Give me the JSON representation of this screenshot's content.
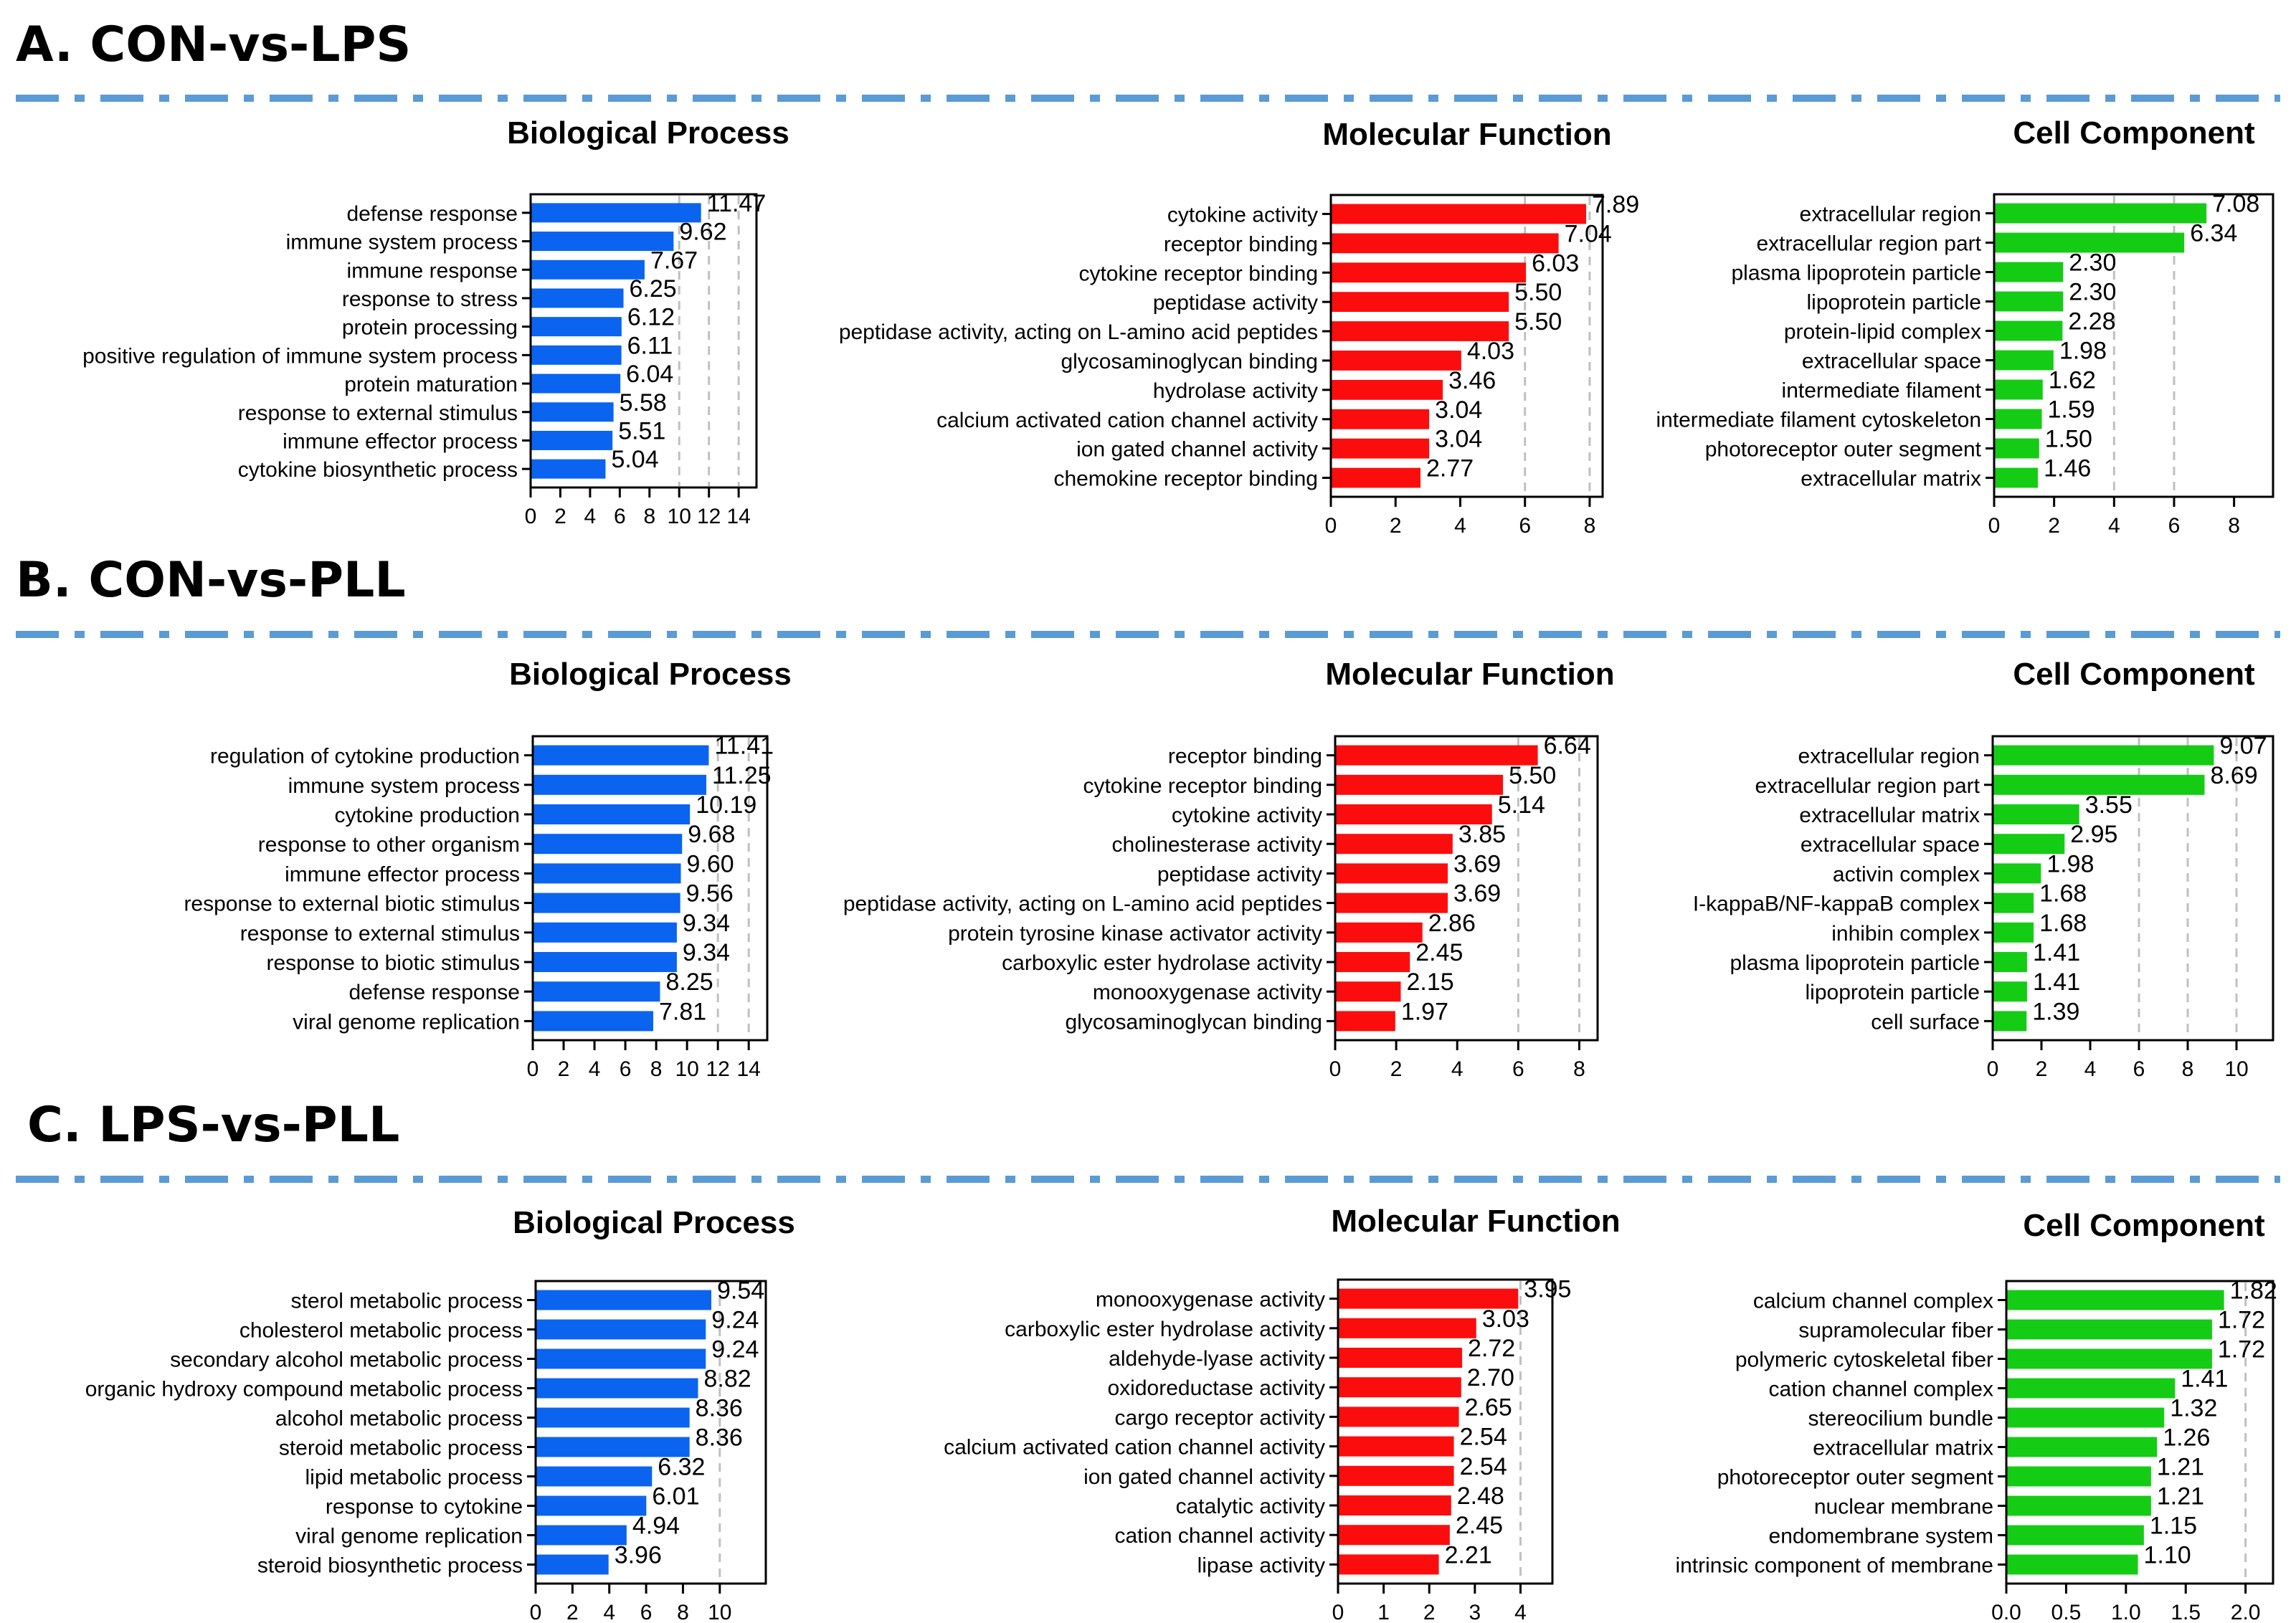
{
  "colors": {
    "divider": "#5b9bd5",
    "bp": "#0a64f0",
    "mf": "#fc0d0d",
    "cc": "#14cc14",
    "grid": "#c0c0c0"
  },
  "sections": [
    {
      "title": "A. CON-vs-LPS"
    },
    {
      "title": "B. CON-vs-PLL"
    },
    {
      "title": "C. LPS-vs-PLL"
    }
  ],
  "chart_data": [
    {
      "type": "bar",
      "orientation": "horizontal",
      "section": "A. CON-vs-LPS",
      "title": "Biological Process",
      "color_key": "bp",
      "categories": [
        "defense response",
        "immune system process",
        "immune response",
        "response to stress",
        "protein processing",
        "positive regulation of immune system process",
        "protein maturation",
        "response to external stimulus",
        "immune effector process",
        "cytokine biosynthetic process"
      ],
      "values": [
        11.47,
        9.62,
        7.67,
        6.25,
        6.12,
        6.11,
        6.04,
        5.58,
        5.51,
        5.04
      ],
      "value_labels": [
        "11.47",
        "9.62",
        "7.67",
        "6.25",
        "6.12",
        "6.11",
        "6.04",
        "5.58",
        "5.51",
        "5.04"
      ],
      "xlim": [
        0,
        15.2
      ],
      "ticks": [
        0,
        2,
        4,
        6,
        8,
        10,
        12,
        14
      ],
      "tick_labels": [
        "0",
        "2",
        "4",
        "6",
        "8",
        "10",
        "12",
        "14"
      ],
      "grid": [
        10,
        12,
        14
      ]
    },
    {
      "type": "bar",
      "orientation": "horizontal",
      "section": "A. CON-vs-LPS",
      "title": "Molecular Function",
      "color_key": "mf",
      "categories": [
        "cytokine activity",
        "receptor binding",
        "cytokine receptor binding",
        "peptidase activity",
        "peptidase activity, acting on L-amino acid peptides",
        "glycosaminoglycan binding",
        "hydrolase activity",
        "calcium activated cation channel activity",
        "ion gated channel activity",
        "chemokine receptor binding"
      ],
      "values": [
        7.89,
        7.04,
        6.03,
        5.5,
        5.5,
        4.03,
        3.46,
        3.04,
        3.04,
        2.77
      ],
      "value_labels": [
        "7.89",
        "7.04",
        "6.03",
        "5.50",
        "5.50",
        "4.03",
        "3.46",
        "3.04",
        "3.04",
        "2.77"
      ],
      "xlim": [
        0,
        8.4
      ],
      "ticks": [
        0,
        2,
        4,
        6,
        8
      ],
      "tick_labels": [
        "0",
        "2",
        "4",
        "6",
        "8"
      ],
      "grid": [
        6,
        8
      ]
    },
    {
      "type": "bar",
      "orientation": "horizontal",
      "section": "A. CON-vs-LPS",
      "title": "Cell Component",
      "color_key": "cc",
      "categories": [
        "extracellular region",
        "extracellular region part",
        "plasma lipoprotein particle",
        "lipoprotein particle",
        "protein-lipid complex",
        "extracellular space",
        "intermediate filament",
        "intermediate filament cytoskeleton",
        "photoreceptor outer segment",
        "extracellular matrix"
      ],
      "values": [
        7.08,
        6.34,
        2.3,
        2.3,
        2.28,
        1.98,
        1.62,
        1.59,
        1.5,
        1.46
      ],
      "value_labels": [
        "7.08",
        "6.34",
        "2.30",
        "2.30",
        "2.28",
        "1.98",
        "1.62",
        "1.59",
        "1.50",
        "1.46"
      ],
      "xlim": [
        0,
        9.3
      ],
      "ticks": [
        0,
        2,
        4,
        6,
        8
      ],
      "tick_labels": [
        "0",
        "2",
        "4",
        "6",
        "8"
      ],
      "grid": [
        4,
        6
      ]
    },
    {
      "type": "bar",
      "orientation": "horizontal",
      "section": "B. CON-vs-PLL",
      "title": "Biological Process",
      "color_key": "bp",
      "categories": [
        "regulation of cytokine production",
        "immune system process",
        "cytokine production",
        "response to other organism",
        "immune effector process",
        "response to external biotic stimulus",
        "response to external stimulus",
        "response to biotic stimulus",
        "defense response",
        "viral genome replication"
      ],
      "values": [
        11.41,
        11.25,
        10.19,
        9.68,
        9.6,
        9.56,
        9.34,
        9.34,
        8.25,
        7.81
      ],
      "value_labels": [
        "11.41",
        "11.25",
        "10.19",
        "9.68",
        "9.60",
        "9.56",
        "9.34",
        "9.34",
        "8.25",
        "7.81"
      ],
      "xlim": [
        0,
        15.2
      ],
      "ticks": [
        0,
        2,
        4,
        6,
        8,
        10,
        12,
        14
      ],
      "tick_labels": [
        "0",
        "2",
        "4",
        "6",
        "8",
        "10",
        "12",
        "14"
      ],
      "grid": [
        12,
        14
      ]
    },
    {
      "type": "bar",
      "orientation": "horizontal",
      "section": "B. CON-vs-PLL",
      "title": "Molecular Function",
      "color_key": "mf",
      "categories": [
        "receptor binding",
        "cytokine receptor binding",
        "cytokine activity",
        "cholinesterase activity",
        "peptidase activity",
        "peptidase activity, acting on L-amino acid peptides",
        "protein tyrosine kinase activator activity",
        "carboxylic ester hydrolase activity",
        "monooxygenase activity",
        "glycosaminoglycan binding"
      ],
      "values": [
        6.64,
        5.5,
        5.14,
        3.85,
        3.69,
        3.69,
        2.86,
        2.45,
        2.15,
        1.97
      ],
      "value_labels": [
        "6.64",
        "5.50",
        "5.14",
        "3.85",
        "3.69",
        "3.69",
        "2.86",
        "2.45",
        "2.15",
        "1.97"
      ],
      "xlim": [
        0,
        8.6
      ],
      "ticks": [
        0,
        2,
        4,
        6,
        8
      ],
      "tick_labels": [
        "0",
        "2",
        "4",
        "6",
        "8"
      ],
      "grid": [
        6,
        8
      ]
    },
    {
      "type": "bar",
      "orientation": "horizontal",
      "section": "B. CON-vs-PLL",
      "title": "Cell Component",
      "color_key": "cc",
      "categories": [
        "extracellular region",
        "extracellular region part",
        "extracellular matrix",
        "extracellular space",
        "activin complex",
        "I-kappaB/NF-kappaB complex",
        "inhibin complex",
        "plasma lipoprotein particle",
        "lipoprotein particle",
        "cell surface"
      ],
      "values": [
        9.07,
        8.69,
        3.55,
        2.95,
        1.98,
        1.68,
        1.68,
        1.41,
        1.41,
        1.39
      ],
      "value_labels": [
        "9.07",
        "8.69",
        "3.55",
        "2.95",
        "1.98",
        "1.68",
        "1.68",
        "1.41",
        "1.41",
        "1.39"
      ],
      "xlim": [
        0,
        11.5
      ],
      "ticks": [
        0,
        2,
        4,
        6,
        8,
        10
      ],
      "tick_labels": [
        "0",
        "2",
        "4",
        "6",
        "8",
        "10"
      ],
      "grid": [
        6,
        8,
        10
      ]
    },
    {
      "type": "bar",
      "orientation": "horizontal",
      "section": "C. LPS-vs-PLL",
      "title": "Biological Process",
      "color_key": "bp",
      "categories": [
        "sterol metabolic process",
        "cholesterol metabolic process",
        "secondary alcohol metabolic process",
        "organic hydroxy compound metabolic process",
        "alcohol metabolic process",
        "steroid metabolic process",
        "lipid metabolic process",
        "response to cytokine",
        "viral genome replication",
        "steroid biosynthetic process"
      ],
      "values": [
        9.54,
        9.24,
        9.24,
        8.82,
        8.36,
        8.36,
        6.32,
        6.01,
        4.94,
        3.96
      ],
      "value_labels": [
        "9.54",
        "9.24",
        "9.24",
        "8.82",
        "8.36",
        "8.36",
        "6.32",
        "6.01",
        "4.94",
        "3.96"
      ],
      "xlim": [
        0,
        12.5
      ],
      "ticks": [
        0,
        2,
        4,
        6,
        8,
        10
      ],
      "tick_labels": [
        "0",
        "2",
        "4",
        "6",
        "8",
        "10"
      ],
      "grid": [
        10
      ]
    },
    {
      "type": "bar",
      "orientation": "horizontal",
      "section": "C. LPS-vs-PLL",
      "title": "Molecular Function",
      "color_key": "mf",
      "categories": [
        "monooxygenase activity",
        "carboxylic ester hydrolase activity",
        "aldehyde-lyase activity",
        "oxidoreductase activity",
        "cargo receptor activity",
        "calcium activated cation channel activity",
        "ion gated channel activity",
        "catalytic activity",
        "cation channel activity",
        "lipase activity"
      ],
      "values": [
        3.95,
        3.03,
        2.72,
        2.7,
        2.65,
        2.54,
        2.54,
        2.48,
        2.45,
        2.21
      ],
      "value_labels": [
        "3.95",
        "3.03",
        "2.72",
        "2.70",
        "2.65",
        "2.54",
        "2.54",
        "2.48",
        "2.45",
        "2.21"
      ],
      "xlim": [
        0,
        4.7
      ],
      "ticks": [
        0,
        1,
        2,
        3,
        4
      ],
      "tick_labels": [
        "0",
        "1",
        "2",
        "3",
        "4"
      ],
      "grid": [
        4
      ]
    },
    {
      "type": "bar",
      "orientation": "horizontal",
      "section": "C. LPS-vs-PLL",
      "title": "Cell Component",
      "color_key": "cc",
      "categories": [
        "calcium channel complex",
        "supramolecular fiber",
        "polymeric cytoskeletal fiber",
        "cation channel complex",
        "stereocilium bundle",
        "extracellular matrix",
        "photoreceptor outer segment",
        "nuclear membrane",
        "endomembrane system",
        "intrinsic component of membrane"
      ],
      "values": [
        1.82,
        1.72,
        1.72,
        1.41,
        1.32,
        1.26,
        1.21,
        1.21,
        1.15,
        1.1
      ],
      "value_labels": [
        "1.82",
        "1.72",
        "1.72",
        "1.41",
        "1.32",
        "1.26",
        "1.21",
        "1.21",
        "1.15",
        "1.10"
      ],
      "xlim": [
        0,
        2.23
      ],
      "ticks": [
        0,
        0.5,
        1,
        1.5,
        2
      ],
      "tick_labels": [
        "0.0",
        "0.5",
        "1.0",
        "1.5",
        "2.0"
      ],
      "grid": [
        2
      ]
    }
  ]
}
